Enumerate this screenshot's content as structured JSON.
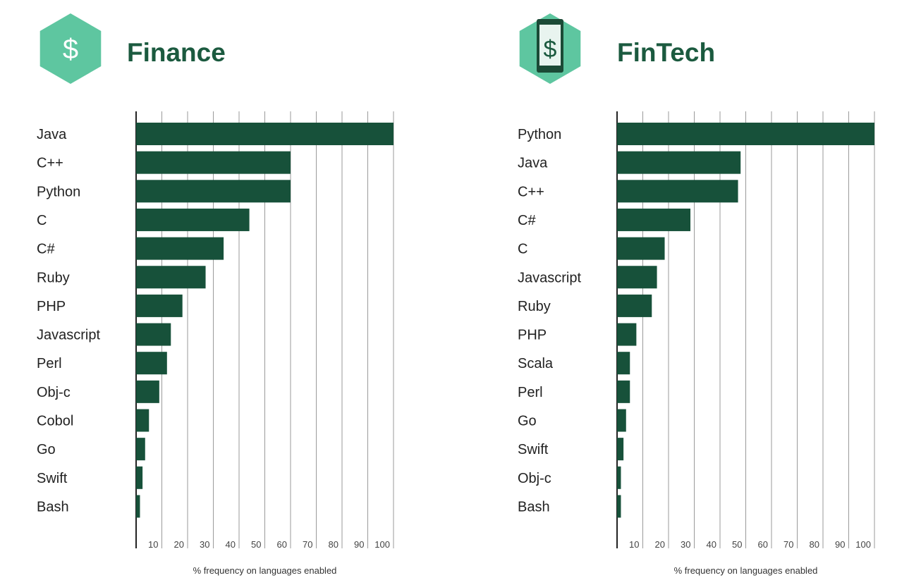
{
  "colors": {
    "bar": "#17513a",
    "hexagon": "#5ec6a0",
    "title": "#1b5a3f",
    "grid": "#9a9a9a"
  },
  "chart_data": [
    {
      "type": "bar",
      "orientation": "horizontal",
      "title": "Finance",
      "icon": "dollar-hexagon-icon",
      "xlabel": "% frequency on languages enabled",
      "xlim": [
        0,
        100
      ],
      "xticks": [
        10,
        20,
        30,
        40,
        50,
        60,
        70,
        80,
        90,
        100
      ],
      "grid": true,
      "categories": [
        "Java",
        "C++",
        "Python",
        "C",
        "C#",
        "Ruby",
        "PHP",
        "Javascript",
        "Perl",
        "Obj-c",
        "Cobol",
        "Go",
        "Swift",
        "Bash"
      ],
      "values": [
        100,
        60,
        60,
        44,
        34,
        27,
        18,
        13.5,
        12,
        9,
        5,
        3.5,
        2.5,
        1.5
      ]
    },
    {
      "type": "bar",
      "orientation": "horizontal",
      "title": "FinTech",
      "icon": "phone-dollar-hexagon-icon",
      "xlabel": "% frequency on languages enabled",
      "xlim": [
        0,
        100
      ],
      "xticks": [
        10,
        20,
        30,
        40,
        50,
        60,
        70,
        80,
        90,
        100
      ],
      "grid": true,
      "categories": [
        "Python",
        "Java",
        "C++",
        "C#",
        "C",
        "Javascript",
        "Ruby",
        "PHP",
        "Scala",
        "Perl",
        "Go",
        "Swift",
        "Obj-c",
        "Bash"
      ],
      "values": [
        100,
        48,
        47,
        28.5,
        18.5,
        15.5,
        13.5,
        7.5,
        5,
        5,
        3.5,
        2.5,
        1.5,
        1.5
      ]
    }
  ]
}
